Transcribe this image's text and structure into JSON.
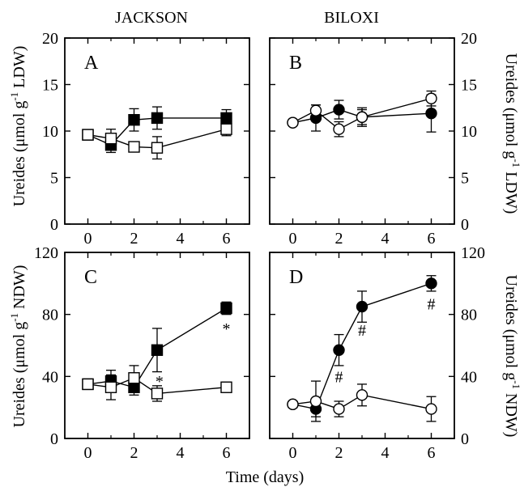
{
  "column_titles": [
    "JACKSON",
    "BILOXI"
  ],
  "ylabel_ldw": {
    "main": "Ureides (μmol g",
    "sup": "-1",
    "end": " LDW)"
  },
  "ylabel_ndw": {
    "main": "Ureides (μmol g",
    "sup": "-1",
    "end": " NDW)"
  },
  "xlabel": "Time (days)",
  "chart_data": [
    {
      "panel": "A",
      "type": "line",
      "cultivar": "JACKSON",
      "xlim": [
        -1,
        7
      ],
      "ylim": [
        0,
        20
      ],
      "xticks": [
        0,
        2,
        4,
        6
      ],
      "yticks": [
        0,
        5,
        10,
        15,
        20
      ],
      "ytick_side": "left",
      "marker": "square",
      "series": [
        {
          "fill": "filled",
          "x": [
            0,
            1,
            2,
            3,
            6
          ],
          "y": [
            9.6,
            8.5,
            11.2,
            11.4,
            11.4
          ],
          "err": [
            0.4,
            0.8,
            1.2,
            1.2,
            0.9
          ]
        },
        {
          "fill": "open",
          "x": [
            0,
            1,
            2,
            3,
            6
          ],
          "y": [
            9.6,
            9.2,
            8.3,
            8.2,
            10.2
          ],
          "err": [
            0.4,
            1.0,
            0.5,
            1.2,
            0.7
          ]
        }
      ],
      "annotations": []
    },
    {
      "panel": "B",
      "type": "line",
      "cultivar": "BILOXI",
      "xlim": [
        -1,
        7
      ],
      "ylim": [
        0,
        20
      ],
      "xticks": [
        0,
        2,
        4,
        6
      ],
      "yticks": [
        0,
        5,
        10,
        15,
        20
      ],
      "ytick_side": "right",
      "marker": "circle",
      "series": [
        {
          "fill": "filled",
          "x": [
            0,
            1,
            2,
            3,
            6
          ],
          "y": [
            10.9,
            11.4,
            12.3,
            11.5,
            11.9
          ],
          "err": [
            0.3,
            1.4,
            1.0,
            1.0,
            2.0
          ]
        },
        {
          "fill": "open",
          "x": [
            0,
            1,
            2,
            3,
            6
          ],
          "y": [
            10.9,
            12.2,
            10.2,
            11.5,
            13.5
          ],
          "err": [
            0.3,
            0.6,
            0.8,
            0.8,
            0.8
          ]
        }
      ],
      "annotations": []
    },
    {
      "panel": "C",
      "type": "line",
      "cultivar": "JACKSON",
      "xlim": [
        -1,
        7
      ],
      "ylim": [
        0,
        120
      ],
      "xticks": [
        0,
        2,
        4,
        6
      ],
      "yticks": [
        0,
        40,
        80,
        120
      ],
      "ytick_side": "left",
      "marker": "square",
      "series": [
        {
          "fill": "filled",
          "x": [
            0,
            1,
            2,
            3,
            6
          ],
          "y": [
            35,
            37,
            33,
            57,
            84
          ],
          "err": [
            2,
            7,
            5,
            14,
            4
          ]
        },
        {
          "fill": "open",
          "x": [
            0,
            1,
            2,
            3,
            6
          ],
          "y": [
            35,
            33,
            39,
            29,
            33
          ],
          "err": [
            2,
            8,
            8,
            5,
            2
          ]
        }
      ],
      "annotations": [
        {
          "text": "*",
          "x": 3.1,
          "y": 37
        },
        {
          "text": "*",
          "x": 6,
          "y": 71
        }
      ]
    },
    {
      "panel": "D",
      "type": "line",
      "cultivar": "BILOXI",
      "xlim": [
        -1,
        7
      ],
      "ylim": [
        0,
        120
      ],
      "xticks": [
        0,
        2,
        4,
        6
      ],
      "yticks": [
        0,
        40,
        80,
        120
      ],
      "ytick_side": "right",
      "marker": "circle",
      "series": [
        {
          "fill": "filled",
          "x": [
            0,
            1,
            2,
            3,
            6
          ],
          "y": [
            22,
            19,
            57,
            85,
            100
          ],
          "err": [
            2,
            5,
            10,
            10,
            5
          ]
        },
        {
          "fill": "open",
          "x": [
            0,
            1,
            2,
            3,
            6
          ],
          "y": [
            22,
            24,
            19,
            28,
            19
          ],
          "err": [
            2,
            13,
            5,
            7,
            8
          ]
        }
      ],
      "annotations": [
        {
          "text": "#",
          "x": 2,
          "y": 40
        },
        {
          "text": "#",
          "x": 3,
          "y": 70
        },
        {
          "text": "#",
          "x": 6,
          "y": 87
        }
      ]
    }
  ]
}
